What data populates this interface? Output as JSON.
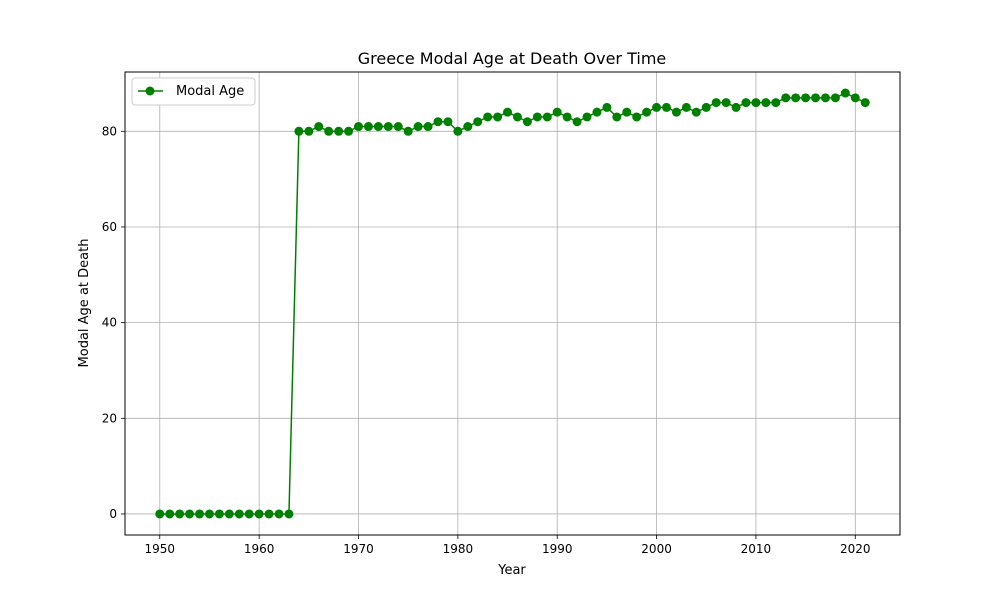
{
  "chart_data": {
    "type": "line",
    "title": "Greece Modal Age at Death Over Time",
    "xlabel": "Year",
    "ylabel": "Modal Age at Death",
    "xlim": [
      1946.5,
      2024.5
    ],
    "ylim": [
      -4.4,
      92.4
    ],
    "xticks": [
      1950,
      1960,
      1970,
      1980,
      1990,
      2000,
      2010,
      2020
    ],
    "yticks": [
      0,
      20,
      40,
      60,
      80
    ],
    "grid": true,
    "legend_position": "top-left",
    "series": [
      {
        "name": "Modal Age",
        "color": "#008000",
        "marker": "circle",
        "x": [
          1950,
          1951,
          1952,
          1953,
          1954,
          1955,
          1956,
          1957,
          1958,
          1959,
          1960,
          1961,
          1962,
          1963,
          1964,
          1965,
          1966,
          1967,
          1968,
          1969,
          1970,
          1971,
          1972,
          1973,
          1974,
          1975,
          1976,
          1977,
          1978,
          1979,
          1980,
          1981,
          1982,
          1983,
          1984,
          1985,
          1986,
          1987,
          1988,
          1989,
          1990,
          1991,
          1992,
          1993,
          1994,
          1995,
          1996,
          1997,
          1998,
          1999,
          2000,
          2001,
          2002,
          2003,
          2004,
          2005,
          2006,
          2007,
          2008,
          2009,
          2010,
          2011,
          2012,
          2013,
          2014,
          2015,
          2016,
          2017,
          2018,
          2019,
          2020,
          2021
        ],
        "values": [
          0,
          0,
          0,
          0,
          0,
          0,
          0,
          0,
          0,
          0,
          0,
          0,
          0,
          0,
          80,
          80,
          81,
          80,
          80,
          80,
          81,
          81,
          81,
          81,
          81,
          80,
          81,
          81,
          82,
          82,
          80,
          81,
          82,
          83,
          83,
          84,
          83,
          82,
          83,
          83,
          84,
          83,
          82,
          83,
          84,
          85,
          83,
          84,
          83,
          84,
          85,
          85,
          84,
          85,
          84,
          85,
          86,
          86,
          85,
          86,
          86,
          86,
          86,
          87,
          87,
          87,
          87,
          87,
          87,
          88,
          87,
          86
        ]
      }
    ]
  }
}
